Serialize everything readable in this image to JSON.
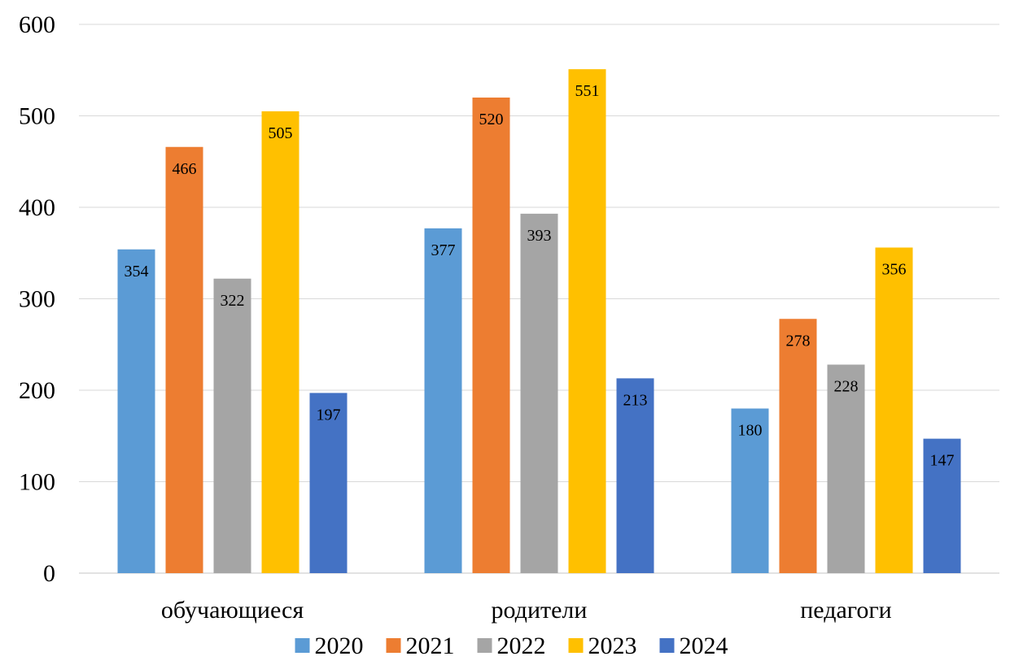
{
  "chart_data": {
    "type": "bar",
    "categories": [
      "обучающиеся",
      "родители",
      "педагоги"
    ],
    "series": [
      {
        "name": "2020",
        "color": "#5b9bd5",
        "values": [
          354,
          377,
          180
        ]
      },
      {
        "name": "2021",
        "color": "#ed7d31",
        "values": [
          466,
          520,
          278
        ]
      },
      {
        "name": "2022",
        "color": "#a5a5a5",
        "values": [
          322,
          393,
          228
        ]
      },
      {
        "name": "2023",
        "color": "#ffc000",
        "values": [
          505,
          551,
          356
        ]
      },
      {
        "name": "2024",
        "color": "#4472c4",
        "values": [
          197,
          213,
          147
        ]
      }
    ],
    "ylim": [
      0,
      600
    ],
    "yticks": [
      0,
      100,
      200,
      300,
      400,
      500,
      600
    ],
    "grid": true,
    "legend_position": "bottom",
    "data_labels": true
  }
}
